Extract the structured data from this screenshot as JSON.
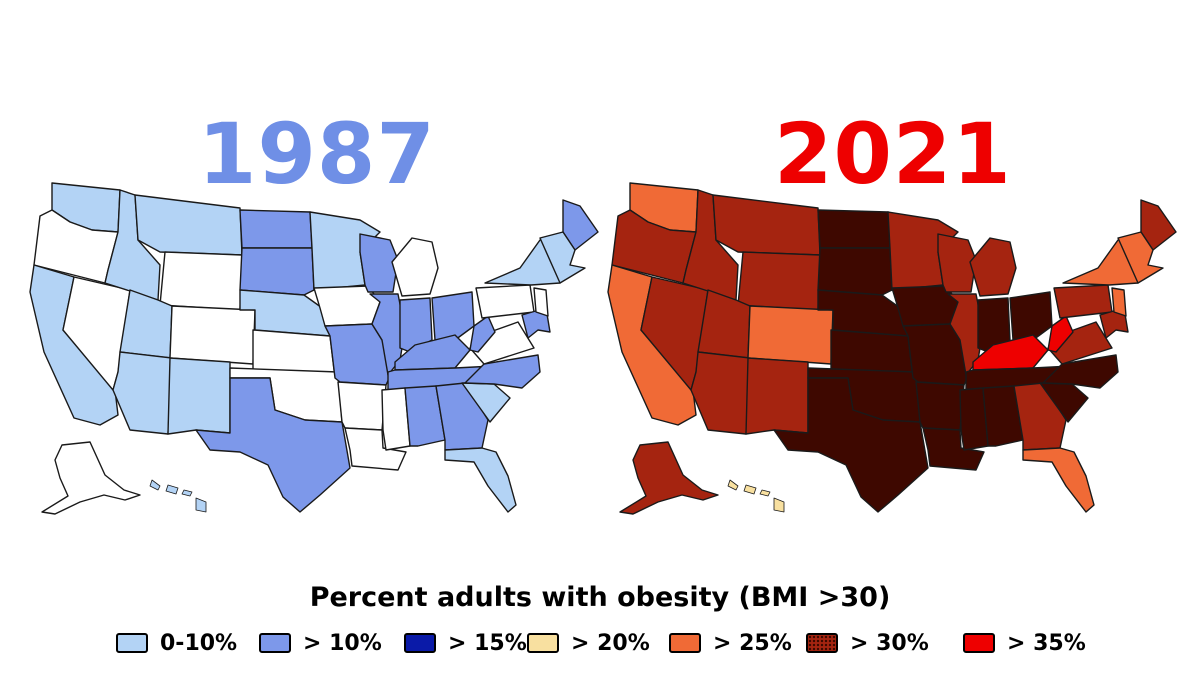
{
  "maps": [
    {
      "year": "1987",
      "year_color": "#6f8fe6",
      "region_classes": {
        "washington": "0-10%",
        "oregon": "none",
        "california": "0-10%",
        "nevada": "none",
        "idaho": "0-10%",
        "montana": "0-10%",
        "wyoming": "none",
        "utah": "0-10%",
        "arizona": "0-10%",
        "colorado": "none",
        "new-mexico": "0-10%",
        "north-dakota": "> 10%",
        "south-dakota": "> 10%",
        "nebraska": "0-10%",
        "kansas": "none",
        "oklahoma": "none",
        "texas": "> 10%",
        "minnesota": "0-10%",
        "iowa": "none",
        "missouri": "> 10%",
        "arkansas": "none",
        "louisiana": "none",
        "wisconsin": "> 10%",
        "illinois": "> 10%",
        "michigan": "none",
        "indiana": "> 10%",
        "ohio": "> 10%",
        "kentucky": "> 10%",
        "tennessee": "> 10%",
        "mississippi": "none",
        "alabama": "> 10%",
        "georgia": "> 10%",
        "florida": "0-10%",
        "south-carolina": "0-10%",
        "north-carolina": "> 10%",
        "virginia": "none",
        "west-virginia": "> 10%",
        "pennsylvania": "none",
        "new-york": "0-10%",
        "maine": "> 10%",
        "new-england": "0-10%",
        "maryland-delaware": "> 10%",
        "new-jersey": "none",
        "alaska": "none",
        "hawaii": "0-10%"
      }
    },
    {
      "year": "2021",
      "year_color": "#ee0000",
      "region_classes": {
        "washington": "> 25%",
        "oregon": "> 30%",
        "california": "> 25%",
        "nevada": "> 30%",
        "idaho": "> 30%",
        "montana": "> 30%",
        "wyoming": "> 30%",
        "utah": "> 30%",
        "arizona": "> 30%",
        "colorado": "> 25%",
        "new-mexico": "> 30%",
        "north-dakota": "> 30%",
        "south-dakota": "> 30%",
        "nebraska": "> 30%",
        "kansas": "> 30%",
        "oklahoma": "> 30%",
        "texas": "> 30%",
        "minnesota": "> 30%",
        "iowa": "> 30%",
        "missouri": "> 30%",
        "arkansas": "> 30%",
        "louisiana": "> 30%",
        "wisconsin": "> 30%",
        "illinois": "> 30%",
        "michigan": "> 30%",
        "indiana": "> 30%",
        "ohio": "> 30%",
        "kentucky": "> 35%",
        "tennessee": "> 30%",
        "mississippi": "> 30%",
        "alabama": "> 30%",
        "georgia": "> 30%",
        "florida": "> 25%",
        "south-carolina": "> 30%",
        "north-carolina": "> 30%",
        "virginia": "> 30%",
        "west-virginia": "> 35%",
        "pennsylvania": "> 30%",
        "new-york": "> 25%",
        "maine": "> 30%",
        "new-england": "> 25%",
        "maryland-delaware": "> 30%",
        "new-jersey": "> 25%",
        "alaska": "> 30%",
        "hawaii": "> 20%"
      }
    }
  ],
  "legend": {
    "title": "Percent adults with obesity (BMI >30)",
    "items": [
      {
        "label": "0-10%",
        "color": "#b3d3f5",
        "pattern": "solid"
      },
      {
        "label": "> 10%",
        "color": "#7d98ea",
        "pattern": "solid"
      },
      {
        "label": "> 15%",
        "color": "#0a1aa8",
        "pattern": "solid"
      },
      {
        "label": "> 20%",
        "color": "#f8e0a0",
        "pattern": "solid"
      },
      {
        "label": "> 25%",
        "color": "#f06a36",
        "pattern": "solid"
      },
      {
        "label": "> 30%",
        "color": "#a52410",
        "pattern": "dotted"
      },
      {
        "label": "> 35%",
        "color": "#ee0000",
        "pattern": "solid"
      }
    ]
  },
  "region_fill_overrides": {
    "> 30%": {
      "north-dakota": "#3e0800",
      "south-dakota": "#3e0800",
      "nebraska": "#3e0800",
      "kansas": "#3e0800",
      "oklahoma": "#3e0800",
      "texas": "#3e0800",
      "iowa": "#3e0800",
      "missouri": "#3e0800",
      "arkansas": "#3e0800",
      "louisiana": "#3e0800",
      "mississippi": "#3e0800",
      "alabama": "#3e0800",
      "tennessee": "#3e0800",
      "indiana": "#3e0800",
      "ohio": "#3e0800",
      "south-carolina": "#3e0800",
      "north-carolina": "#3e0800"
    }
  }
}
